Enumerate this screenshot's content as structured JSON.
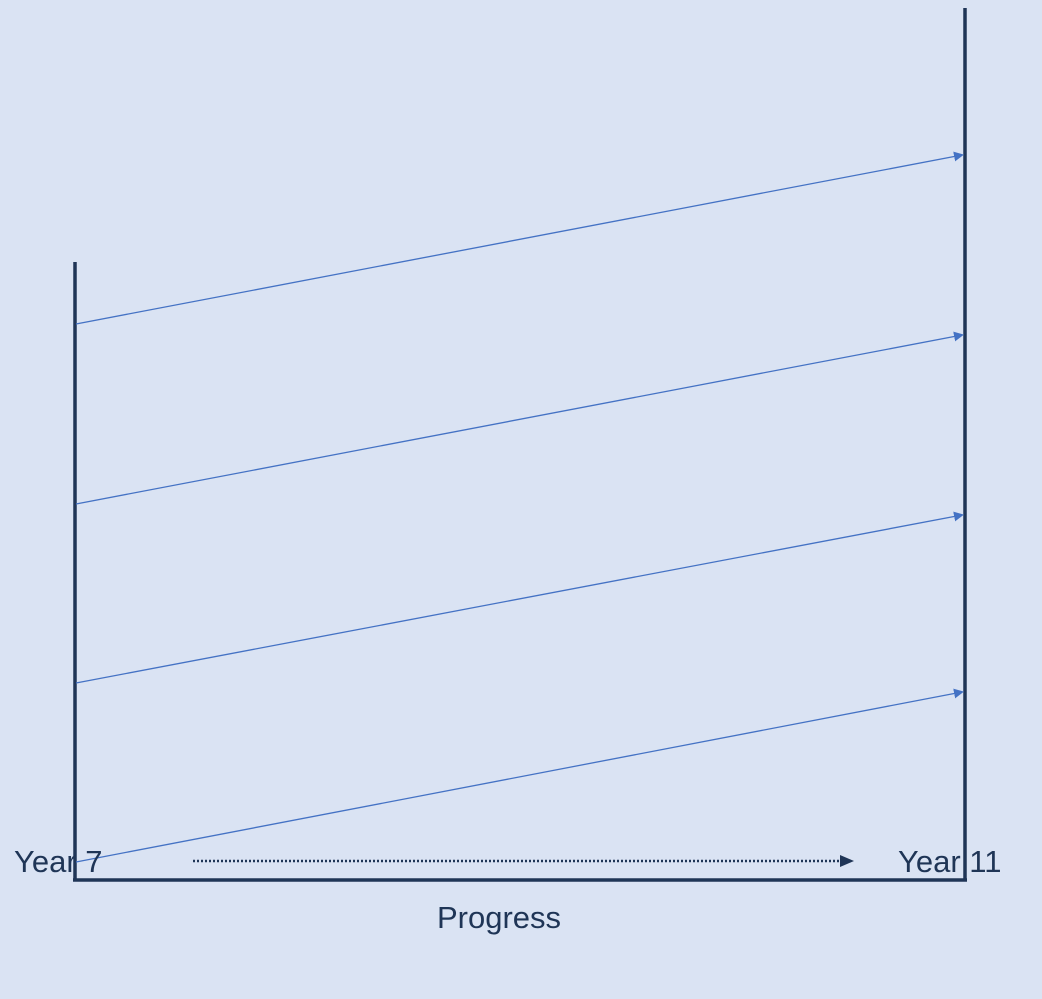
{
  "colors": {
    "background": "#dae3f3",
    "axis": "#1f3556",
    "arrows": "#4472c4",
    "text": "#1f3556"
  },
  "labels": {
    "start": "Year 7",
    "end": "Year 11",
    "progress": "Progress"
  },
  "diagram": {
    "type": "progress-flightpaths",
    "arrow_count": 4
  }
}
